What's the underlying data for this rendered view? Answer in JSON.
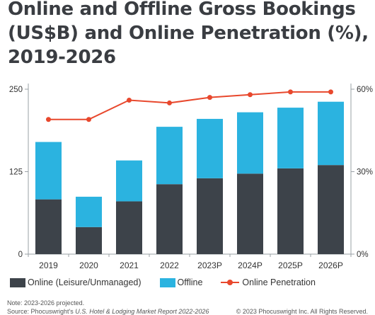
{
  "title": "Online and Offline Gross Bookings\n(US$B) and Online Penetration (%),\n2019-2026",
  "chart_data": {
    "type": "bar",
    "stacked": true,
    "categories": [
      "2019",
      "2020",
      "2021",
      "2022",
      "2023P",
      "2024P",
      "2025P",
      "2026P"
    ],
    "series": [
      {
        "name": "Online (Leisure/Unmanaged)",
        "kind": "bar",
        "color": "#3d434a",
        "values": [
          83,
          41,
          80,
          106,
          115,
          122,
          130,
          135
        ]
      },
      {
        "name": "Offline",
        "kind": "bar",
        "color": "#2bb3e0",
        "values": [
          87,
          46,
          62,
          87,
          90,
          93,
          92,
          96
        ]
      },
      {
        "name": "Online Penetration",
        "kind": "line",
        "axis": "right",
        "color": "#e8482d",
        "values": [
          0.49,
          0.49,
          0.56,
          0.55,
          0.57,
          0.58,
          0.59,
          0.59
        ]
      }
    ],
    "ylim": [
      0,
      250
    ],
    "yticks": [
      0,
      125,
      250
    ],
    "y2lim": [
      0,
      0.6
    ],
    "y2ticks": [
      "0%",
      "30%",
      "60%"
    ],
    "grid": false
  },
  "legend": [
    {
      "label": "Online (Leisure/Unmanaged)",
      "color": "#3d434a",
      "kind": "bar"
    },
    {
      "label": "Offline",
      "color": "#2bb3e0",
      "kind": "bar"
    },
    {
      "label": "Online Penetration",
      "color": "#e8482d",
      "kind": "line"
    }
  ],
  "footer": {
    "note": "Note: 2023-2026 projected.",
    "source_prefix": "Source: Phocuswright's ",
    "source_title": "U.S. Hotel & Lodging Market Report 2022-2026",
    "copyright": "© 2023 Phocuswright Inc. All Rights Reserved."
  }
}
